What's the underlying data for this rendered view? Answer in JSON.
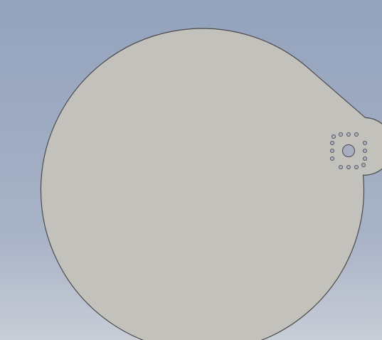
{
  "viewport": {
    "background_top": "#93a2bd",
    "background_bottom": "#c8cdd6"
  },
  "part": {
    "face_color": "#c3c1bc",
    "edge_color": "#4b4b4b",
    "hole_fill_color": "#a7aebf",
    "center_hole_count": 1,
    "small_hole_count": 14
  }
}
